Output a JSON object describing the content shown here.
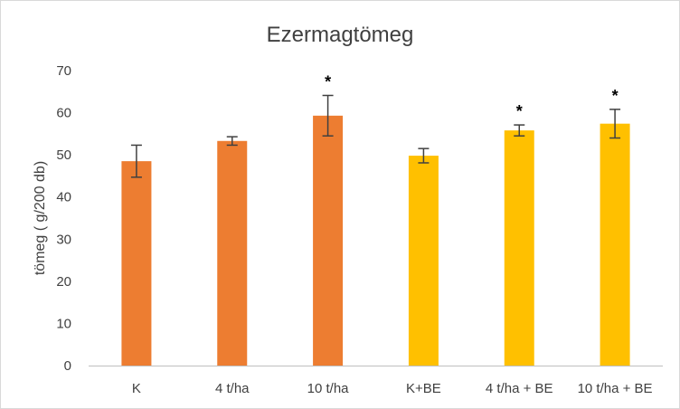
{
  "chart_data": {
    "type": "bar",
    "title": "Ezermagtömeg",
    "xlabel": "",
    "ylabel": "tömeg ( g/200 db)",
    "ylim": [
      0,
      70
    ],
    "yticks": [
      0,
      10,
      20,
      30,
      40,
      50,
      60,
      70
    ],
    "grid": false,
    "categories": [
      "K",
      "4 t/ha",
      "10 t/ha",
      "K+BE",
      "4 t/ha + BE",
      "10 t/ha + BE"
    ],
    "values": [
      48.5,
      53.3,
      59.3,
      49.8,
      55.8,
      57.4
    ],
    "error_bars": [
      3.8,
      1.0,
      4.8,
      1.7,
      1.3,
      3.4
    ],
    "significance": [
      "",
      "",
      "*",
      "",
      "*",
      "*"
    ],
    "colors": [
      "#ED7D31",
      "#ED7D31",
      "#ED7D31",
      "#FFC000",
      "#FFC000",
      "#FFC000"
    ]
  }
}
